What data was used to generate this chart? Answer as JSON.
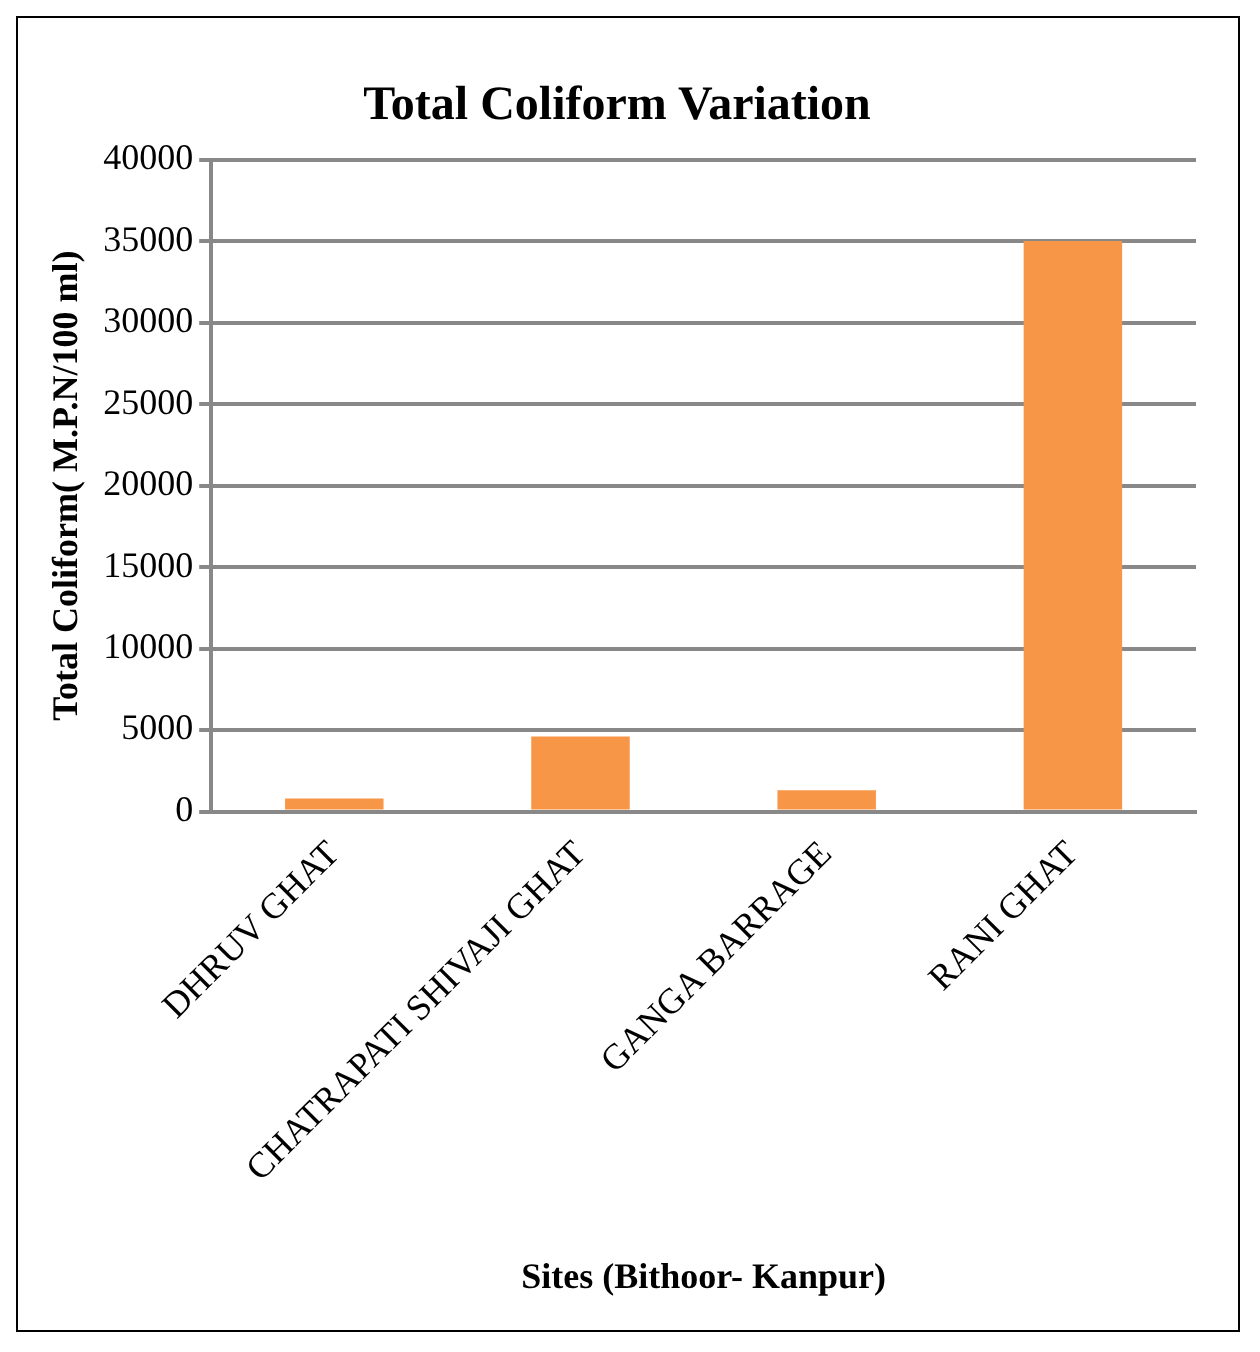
{
  "chart_data": {
    "type": "bar",
    "title": "Total Coliform Variation",
    "xlabel": "Sites (Bithoor- Kanpur)",
    "ylabel": "Total Coliform( M.P.N/100 ml)",
    "categories": [
      "DHRUV GHAT",
      "CHATRAPATI SHIVAJI GHAT",
      "GANGA BARRAGE",
      "RANI GHAT"
    ],
    "values": [
      800,
      4600,
      1300,
      35000
    ],
    "color": "#f79646",
    "ylim": [
      0,
      40000
    ],
    "yticks": [
      0,
      5000,
      10000,
      15000,
      20000,
      25000,
      30000,
      35000,
      40000
    ],
    "grid": "y",
    "legend": false
  }
}
